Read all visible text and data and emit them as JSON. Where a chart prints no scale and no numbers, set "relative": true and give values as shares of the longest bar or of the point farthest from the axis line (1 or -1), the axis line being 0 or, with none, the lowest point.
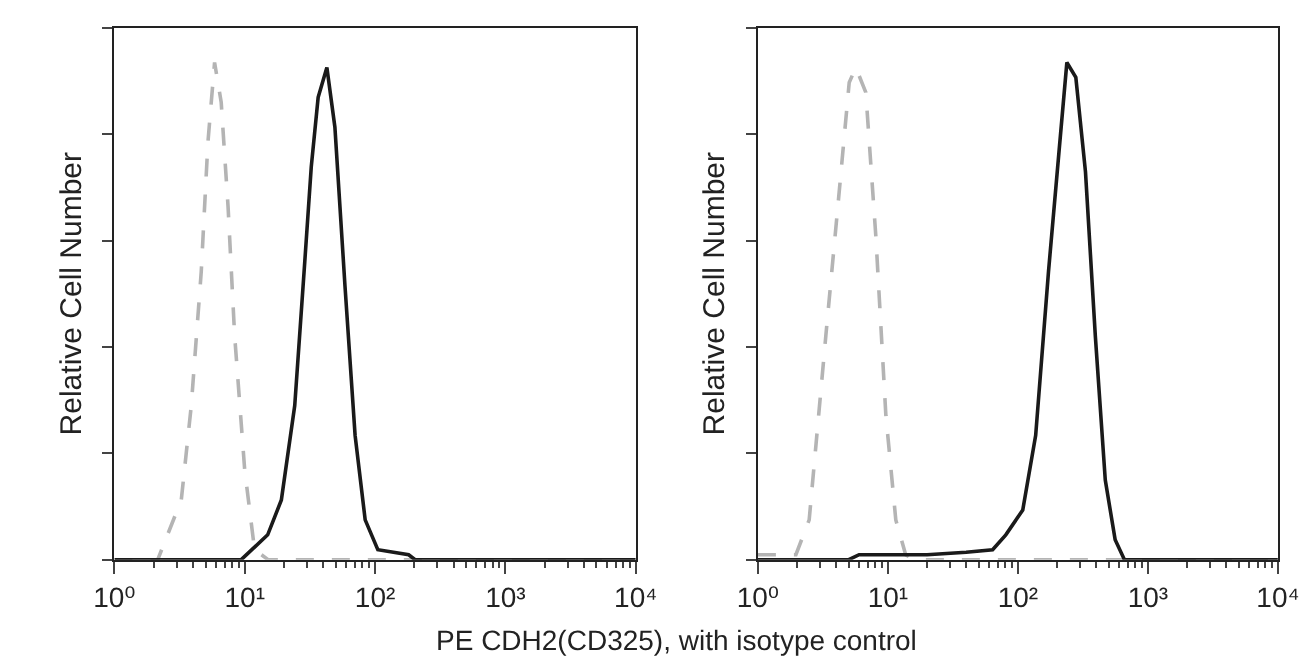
{
  "chart_data": [
    {
      "type": "line",
      "relative": true,
      "ylabel": "Relative Cell Number",
      "xlabel": "PE CDH2(CD325), with isotype control",
      "log": "x",
      "xlim": [
        1,
        10000
      ],
      "xticks": [
        {
          "value": 1,
          "label": "10⁰"
        },
        {
          "value": 10,
          "label": "10¹"
        },
        {
          "value": 100,
          "label": "10²"
        },
        {
          "value": 1000,
          "label": "10³"
        },
        {
          "value": 10000,
          "label": "10⁴"
        }
      ],
      "marker": "none",
      "series": [
        {
          "color": "#b4b4b4",
          "line_style": "dashed",
          "x": [
            1,
            2,
            2.15,
            3.26,
            3.89,
            4.64,
            5.22,
            5.87,
            6.6,
            7.45,
            8.37,
            10,
            11.9,
            15.1,
            10000
          ],
          "values": [
            0,
            0,
            0,
            0.12,
            0.31,
            0.58,
            0.84,
            1.0,
            0.92,
            0.71,
            0.45,
            0.18,
            0.02,
            0,
            0
          ]
        },
        {
          "color": "#1a1a1a",
          "line_style": "solid",
          "x": [
            1,
            9.4,
            15,
            19.1,
            24.2,
            28.9,
            32.4,
            36.6,
            42.7,
            49.2,
            58.8,
            70.3,
            84,
            105,
            181,
            203,
            10000
          ],
          "values": [
            0,
            0,
            0.05,
            0.12,
            0.31,
            0.6,
            0.79,
            0.93,
            0.99,
            0.87,
            0.55,
            0.25,
            0.08,
            0.02,
            0.01,
            0,
            0
          ]
        }
      ]
    },
    {
      "type": "line",
      "relative": true,
      "ylabel": "Relative Cell Number",
      "log": "x",
      "xlim": [
        1,
        10000
      ],
      "xticks": [
        {
          "value": 1,
          "label": "10⁰"
        },
        {
          "value": 10,
          "label": "10¹"
        },
        {
          "value": 100,
          "label": "10²"
        },
        {
          "value": 1000,
          "label": "10³"
        },
        {
          "value": 10000,
          "label": "10⁴"
        }
      ],
      "marker": "none",
      "series": [
        {
          "color": "#b4b4b4",
          "line_style": "dashed",
          "x": [
            1,
            1.96,
            2.48,
            3.33,
            4.22,
            5.04,
            5.67,
            6.76,
            8.08,
            9.65,
            11.5,
            13.7,
            16,
            10000
          ],
          "values": [
            0.01,
            0.01,
            0.08,
            0.45,
            0.74,
            0.96,
            0.99,
            0.94,
            0.65,
            0.29,
            0.08,
            0.01,
            0,
            0
          ]
        },
        {
          "color": "#1a1a1a",
          "line_style": "solid",
          "x": [
            1,
            5,
            6,
            20,
            40,
            63.9,
            80.7,
            109,
            137,
            172,
            207,
            238,
            279,
            331,
            394,
            470,
            560,
            660,
            10000
          ],
          "values": [
            0,
            0,
            0.01,
            0.01,
            0.015,
            0.02,
            0.05,
            0.1,
            0.25,
            0.58,
            0.82,
            1.0,
            0.97,
            0.78,
            0.45,
            0.16,
            0.04,
            0,
            0
          ]
        }
      ]
    }
  ]
}
